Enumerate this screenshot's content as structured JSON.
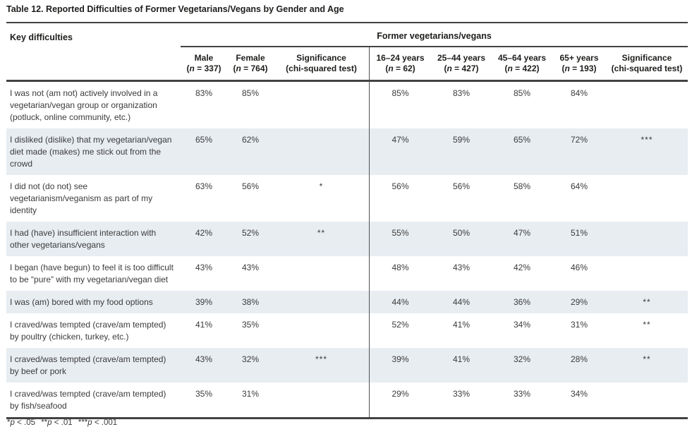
{
  "title": "Table 12. Reported Difficulties of Former Vegetarians/Vegans by Gender and Age",
  "header": {
    "key_label": "Key difficulties",
    "group_label": "Former vegetarians/vegans",
    "columns": [
      {
        "label": "Male",
        "n_open": "(",
        "n_sym": "n",
        "n_rest": " = 337)"
      },
      {
        "label": "Female",
        "n_open": "(",
        "n_sym": "n",
        "n_rest": " = 764)"
      },
      {
        "label": "Significance",
        "sub": "(chi-squared test)"
      },
      {
        "label": "16–24 years",
        "n_open": "(",
        "n_sym": "n",
        "n_rest": " = 62)"
      },
      {
        "label": "25–44 years",
        "n_open": "(",
        "n_sym": "n",
        "n_rest": " = 427)"
      },
      {
        "label": "45–64 years",
        "n_open": "(",
        "n_sym": "n",
        "n_rest": " = 422)"
      },
      {
        "label": "65+ years",
        "n_open": "(",
        "n_sym": "n",
        "n_rest": " = 193)"
      },
      {
        "label": "Significance",
        "sub": "(chi-squared test)"
      }
    ]
  },
  "rows": [
    {
      "difficulty": "I was not (am not) actively involved in a vegetarian/vegan group or organization (potluck, online community, etc.)",
      "male": "83%",
      "female": "85%",
      "sig_gender": "",
      "age_16_24": "85%",
      "age_25_44": "83%",
      "age_45_64": "85%",
      "age_65": "84%",
      "sig_age": ""
    },
    {
      "difficulty": "I disliked (dislike) that my vegetarian/vegan diet made (makes) me stick out from the crowd",
      "male": "65%",
      "female": "62%",
      "sig_gender": "",
      "age_16_24": "47%",
      "age_25_44": "59%",
      "age_45_64": "65%",
      "age_65": "72%",
      "sig_age": "***"
    },
    {
      "difficulty": "I did not (do not) see vegetarianism/veganism as part of my identity",
      "male": "63%",
      "female": "56%",
      "sig_gender": "*",
      "age_16_24": "56%",
      "age_25_44": "56%",
      "age_45_64": "58%",
      "age_65": "64%",
      "sig_age": ""
    },
    {
      "difficulty": "I had (have) insufficient interaction with other vegetarians/vegans",
      "male": "42%",
      "female": "52%",
      "sig_gender": "**",
      "age_16_24": "55%",
      "age_25_44": "50%",
      "age_45_64": "47%",
      "age_65": "51%",
      "sig_age": ""
    },
    {
      "difficulty": "I began (have begun) to feel it is too difficult to be “pure” with my vegetarian/vegan diet",
      "male": "43%",
      "female": "43%",
      "sig_gender": "",
      "age_16_24": "48%",
      "age_25_44": "43%",
      "age_45_64": "42%",
      "age_65": "46%",
      "sig_age": ""
    },
    {
      "difficulty": "I was (am) bored with my food options",
      "male": "39%",
      "female": "38%",
      "sig_gender": "",
      "age_16_24": "44%",
      "age_25_44": "44%",
      "age_45_64": "36%",
      "age_65": "29%",
      "sig_age": "**"
    },
    {
      "difficulty": "I craved/was tempted (crave/am tempted) by poultry (chicken, turkey, etc.)",
      "male": "41%",
      "female": "35%",
      "sig_gender": "",
      "age_16_24": "52%",
      "age_25_44": "41%",
      "age_45_64": "34%",
      "age_65": "31%",
      "sig_age": "**"
    },
    {
      "difficulty": "I craved/was tempted (crave/am tempted) by beef or pork",
      "male": "43%",
      "female": "32%",
      "sig_gender": "***",
      "age_16_24": "39%",
      "age_25_44": "41%",
      "age_45_64": "32%",
      "age_65": "28%",
      "sig_age": "**"
    },
    {
      "difficulty": "I craved/was tempted (crave/am tempted) by fish/seafood",
      "male": "35%",
      "female": "31%",
      "sig_gender": "",
      "age_16_24": "29%",
      "age_25_44": "33%",
      "age_45_64": "33%",
      "age_65": "34%",
      "sig_age": ""
    }
  ],
  "footnote": {
    "parts": [
      {
        "stars": "*",
        "sym": "p",
        "rest": " < .05"
      },
      {
        "stars": "**",
        "sym": "p",
        "rest": " < .01"
      },
      {
        "stars": "***",
        "sym": "p",
        "rest": " < .001"
      }
    ]
  },
  "colors": {
    "row_shade": "#e8edf2",
    "rule": "#434343",
    "text": "#3b3b3a"
  }
}
